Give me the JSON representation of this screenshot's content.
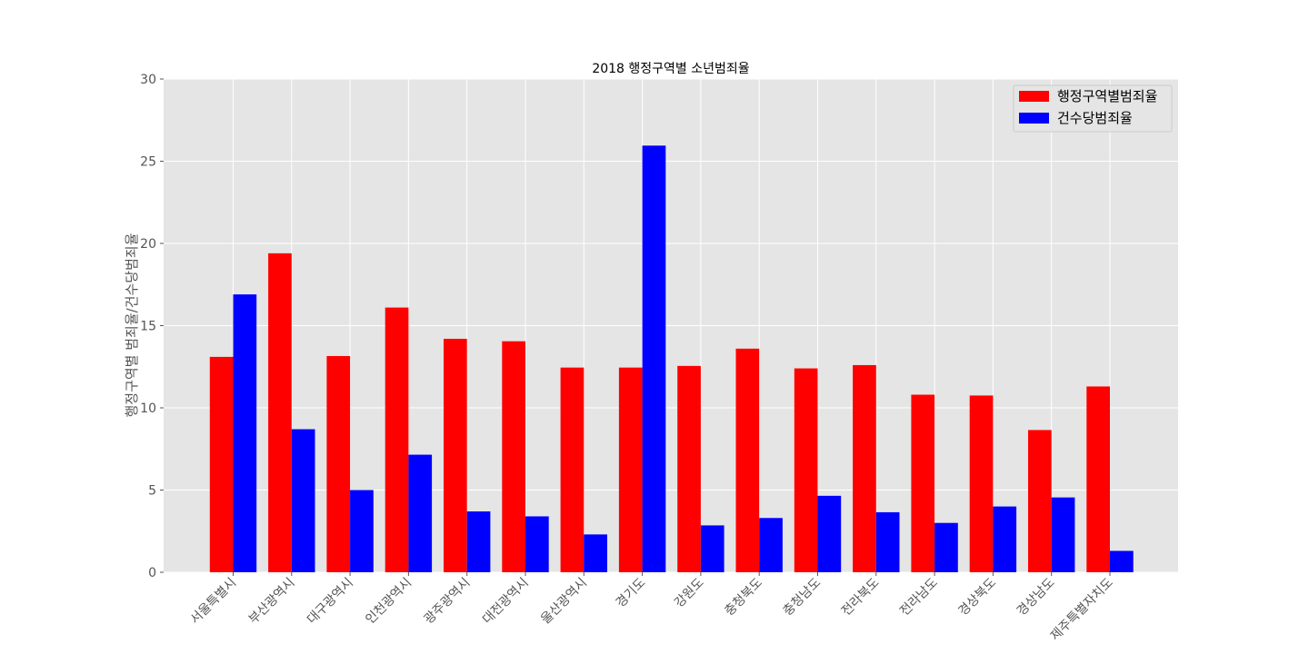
{
  "chart_data": {
    "type": "bar",
    "title": "2018 행정구역별 소년범죄율",
    "xlabel": "",
    "ylabel": "행정구역별 범죄율/건수당범죄율",
    "ylim": [
      0,
      30
    ],
    "yticks": [
      0,
      5,
      10,
      15,
      20,
      25,
      30
    ],
    "grid": true,
    "legend_position": "top-right",
    "categories": [
      "서울특별시",
      "부산광역시",
      "대구광역시",
      "인천광역시",
      "광주광역시",
      "대전광역시",
      "울산광역시",
      "경기도",
      "강원도",
      "충청북도",
      "충청남도",
      "전라북도",
      "전라남도",
      "경상북도",
      "경상남도",
      "제주특별자치도"
    ],
    "series": [
      {
        "name": "행정구역별범죄율",
        "color": "#ff0000",
        "values": [
          13.1,
          19.4,
          13.15,
          16.1,
          14.2,
          14.05,
          12.45,
          12.45,
          12.55,
          13.6,
          12.4,
          12.6,
          10.8,
          10.75,
          8.65,
          11.3
        ]
      },
      {
        "name": "건수당범죄율",
        "color": "#0000ff",
        "values": [
          16.9,
          8.7,
          5.0,
          7.15,
          3.7,
          3.4,
          2.3,
          25.95,
          2.85,
          3.3,
          4.65,
          3.65,
          3.0,
          4.0,
          4.55,
          1.3
        ]
      }
    ]
  }
}
